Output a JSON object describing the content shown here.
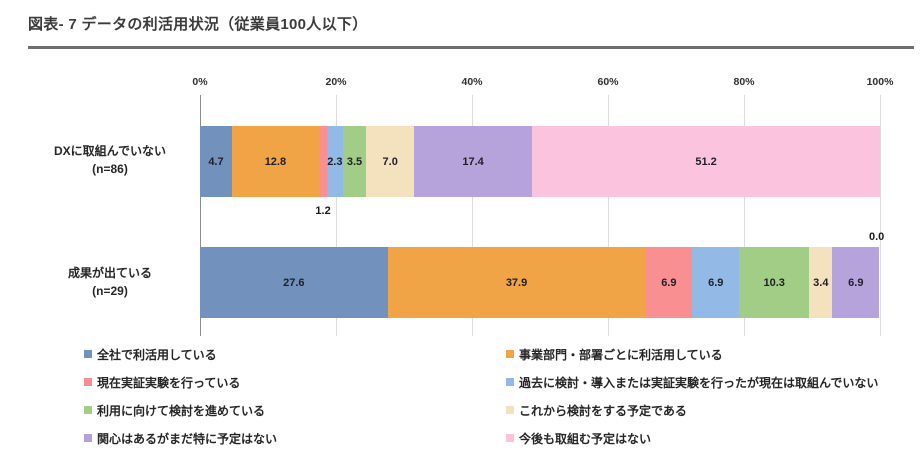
{
  "chart_data": {
    "type": "bar",
    "stacked": true,
    "orientation": "horizontal",
    "title": "図表- 7 データの利活用状況（従業員100人以下）",
    "categories": [
      "DXに取組んでいない",
      "成果が出ている"
    ],
    "category_sublabels": [
      "(n=86)",
      "(n=29)"
    ],
    "x_ticks": [
      "0%",
      "20%",
      "40%",
      "60%",
      "80%",
      "100%"
    ],
    "xlim": [
      0,
      100
    ],
    "grid": true,
    "legend_position": "bottom",
    "series": [
      {
        "name": "全社で利活用している",
        "color": "#7291BC",
        "values": [
          4.7,
          27.6
        ],
        "labels": [
          "4.7",
          "27.6"
        ]
      },
      {
        "name": "事業部門・部署ごとに利活用している",
        "color": "#F1A446",
        "values": [
          12.8,
          37.9
        ],
        "labels": [
          "12.8",
          "37.9"
        ]
      },
      {
        "name": "現在実証実験を行っている",
        "color": "#F98F90",
        "values": [
          1.2,
          6.9
        ],
        "labels": [
          "1.2",
          "6.9"
        ]
      },
      {
        "name": "過去に検討・導入または実証実験を行ったが現在は取組んでいない",
        "color": "#93BAE7",
        "values": [
          2.3,
          6.9
        ],
        "labels": [
          "2.3",
          "6.9"
        ]
      },
      {
        "name": "利用に向けて検討を進めている",
        "color": "#A1CD86",
        "values": [
          3.5,
          10.3
        ],
        "labels": [
          "3.5",
          "10.3"
        ]
      },
      {
        "name": "これから検討をする予定である",
        "color": "#F4E1BE",
        "values": [
          7.0,
          3.4
        ],
        "labels": [
          "7.0",
          "3.4"
        ]
      },
      {
        "name": "関心はあるがまだ特に予定はない",
        "color": "#B6A3DB",
        "values": [
          17.4,
          6.9
        ],
        "labels": [
          "17.4",
          "6.9"
        ]
      },
      {
        "name": "今後も取組む予定はない",
        "color": "#FBC3DE",
        "values": [
          51.2,
          0.0
        ],
        "labels": [
          "51.2",
          "0.0"
        ]
      }
    ],
    "outside_labels": [
      {
        "bar": 0,
        "series": 2,
        "text": "1.2",
        "x_percent": 18.1,
        "position": "below"
      },
      {
        "bar": 1,
        "series": 7,
        "text": "0.0",
        "x_percent": 99.5,
        "position": "above"
      }
    ],
    "legend_columns": [
      [
        0,
        2,
        4,
        6
      ],
      [
        1,
        3,
        5,
        7
      ]
    ]
  }
}
